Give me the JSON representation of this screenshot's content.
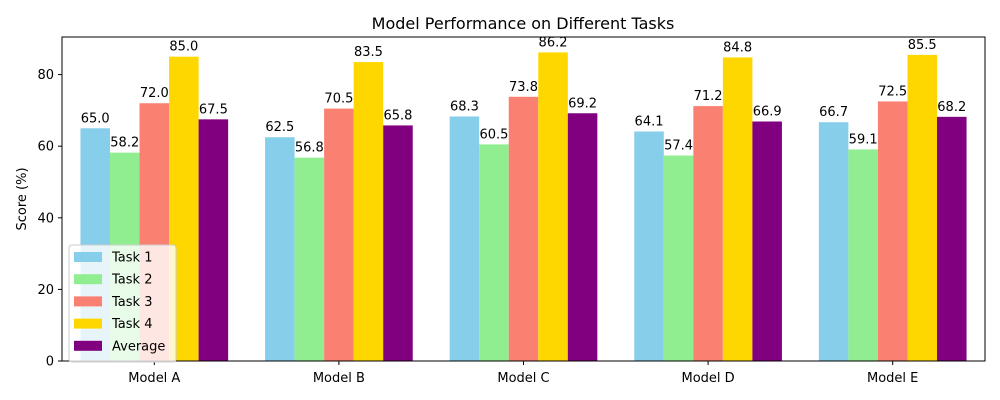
{
  "chart_data": {
    "type": "bar",
    "title": "Model Performance on Different Tasks",
    "xlabel": "",
    "ylabel": "Score (%)",
    "ylim": [
      0,
      90.5
    ],
    "yticks": [
      0,
      20,
      40,
      60,
      80
    ],
    "categories": [
      "Model A",
      "Model B",
      "Model C",
      "Model D",
      "Model E"
    ],
    "series": [
      {
        "name": "Task 1",
        "color": "#87CEEB",
        "values": [
          65.0,
          62.5,
          68.3,
          64.1,
          66.7
        ]
      },
      {
        "name": "Task 2",
        "color": "#90EE90",
        "values": [
          58.2,
          56.8,
          60.5,
          57.4,
          59.1
        ]
      },
      {
        "name": "Task 3",
        "color": "#FA8072",
        "values": [
          72.0,
          70.5,
          73.8,
          71.2,
          72.5
        ]
      },
      {
        "name": "Task 4",
        "color": "#FFD700",
        "values": [
          85.0,
          83.5,
          86.2,
          84.8,
          85.5
        ]
      },
      {
        "name": "Average",
        "color": "#800080",
        "values": [
          67.5,
          65.8,
          69.2,
          66.9,
          68.2
        ]
      }
    ],
    "legend_position": "lower-left",
    "grid": false
  }
}
